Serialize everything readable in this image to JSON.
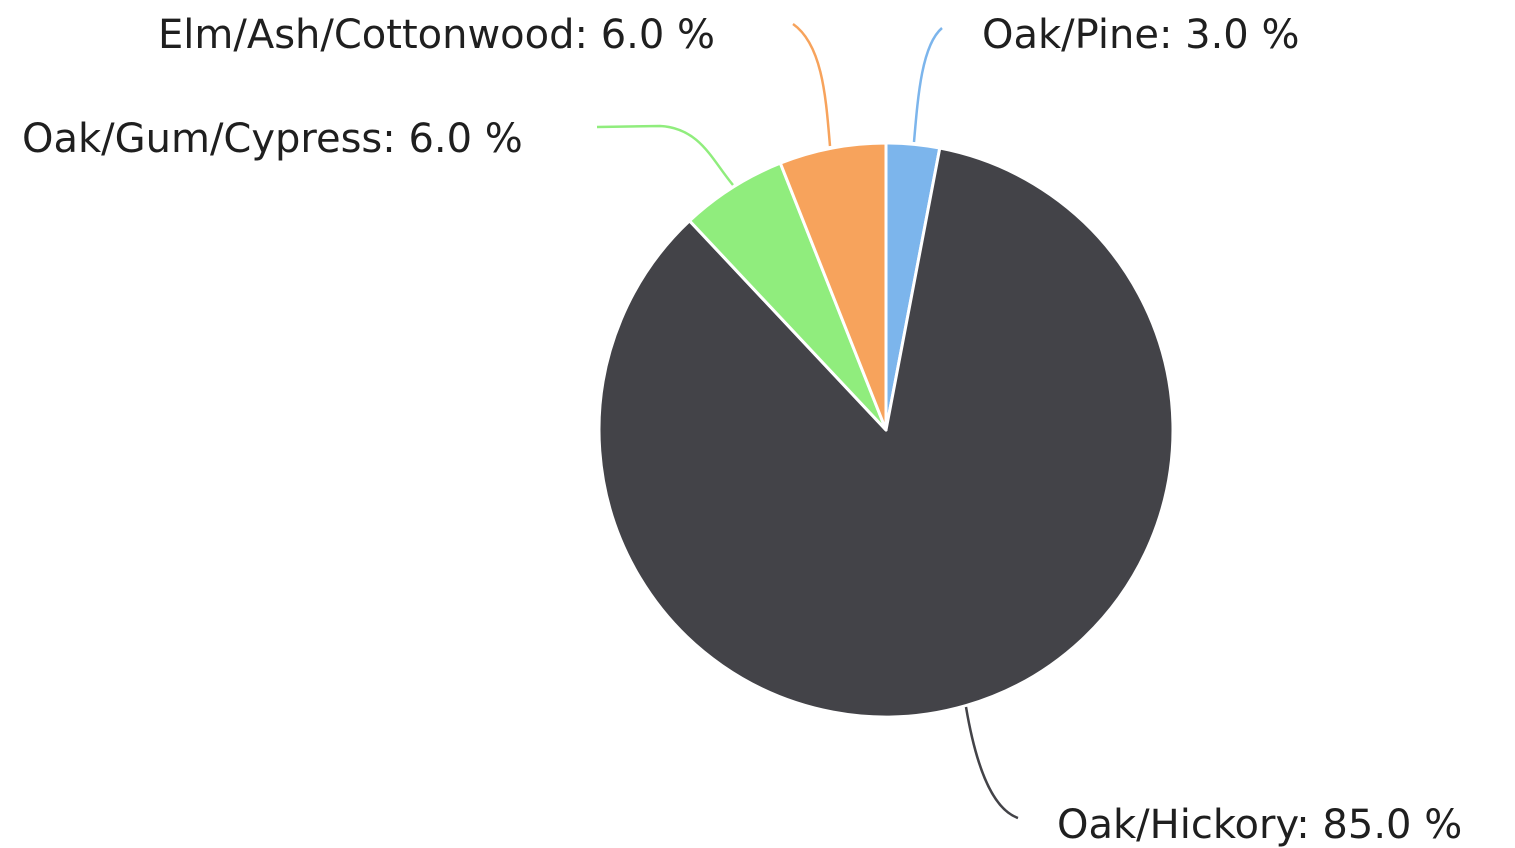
{
  "chart_data": {
    "type": "pie",
    "title": "",
    "slices": [
      {
        "label": "Oak/Pine",
        "value": 3.0,
        "text": "Oak/Pine: 3.0 %",
        "color": "#7cb5ec"
      },
      {
        "label": "Oak/Hickory",
        "value": 85.0,
        "text": "Oak/Hickory: 85.0 %",
        "color": "#434348"
      },
      {
        "label": "Oak/Gum/Cypress",
        "value": 6.0,
        "text": "Oak/Gum/Cypress: 6.0 %",
        "color": "#90ed7d"
      },
      {
        "label": "Elm/Ash/Cottonwood",
        "value": 6.0,
        "text": "Elm/Ash/Cottonwood: 6.0 %",
        "color": "#f7a35c"
      }
    ]
  }
}
